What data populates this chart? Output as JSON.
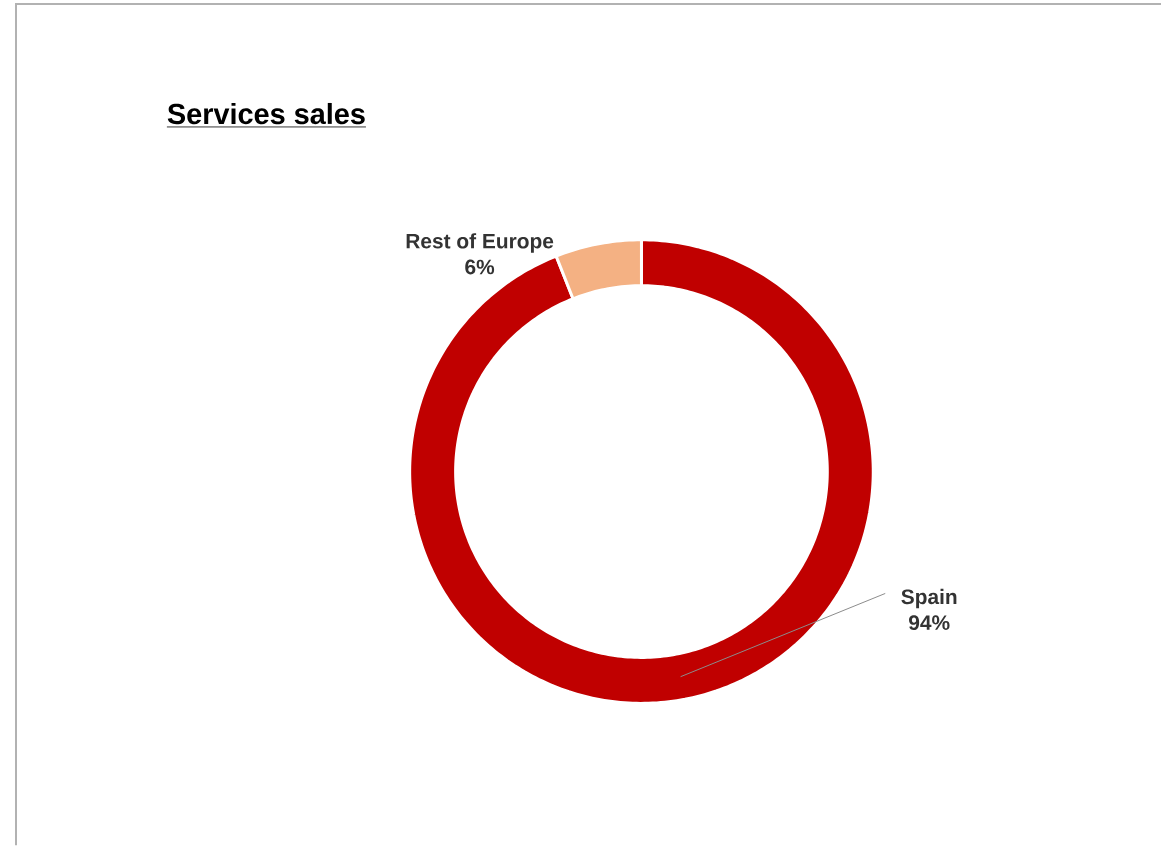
{
  "chart_data": {
    "type": "donut",
    "title": "Services sales",
    "categories": [
      "Spain",
      "Rest of Europe"
    ],
    "values": [
      94,
      6
    ],
    "colors": [
      "#c00000",
      "#f4b183"
    ],
    "value_labels": [
      "94%",
      "6%"
    ]
  }
}
